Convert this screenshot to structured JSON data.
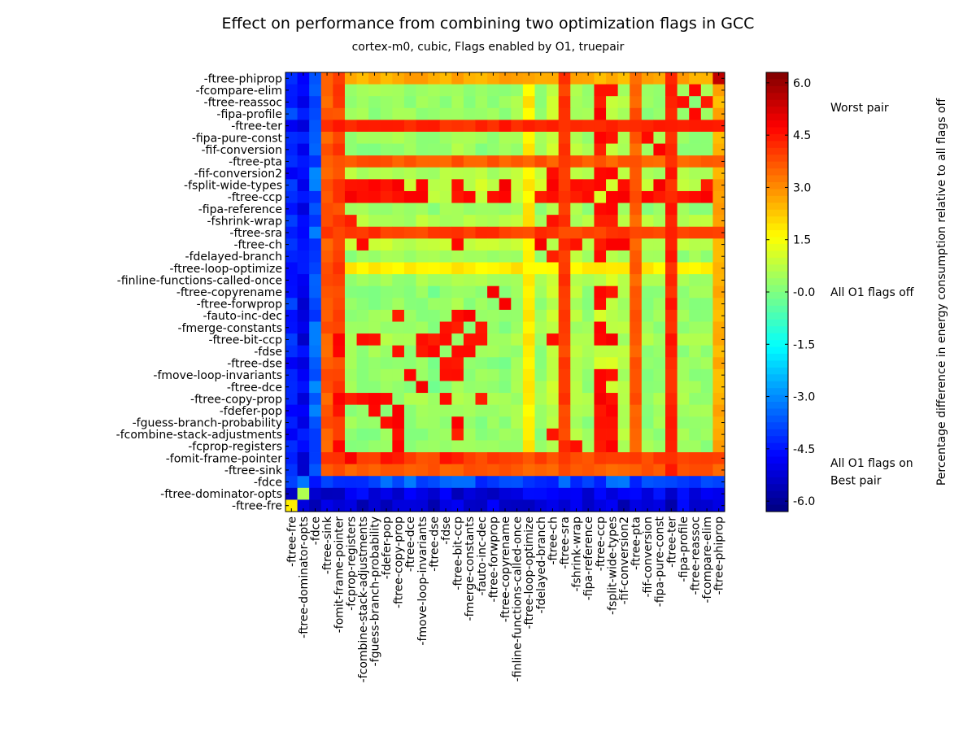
{
  "chart_data": {
    "type": "heatmap",
    "title": "Effect on performance from combining two optimization flags in GCC",
    "subtitle": "cortex-m0, cubic, Flags enabled by O1, truepair",
    "colorbar": {
      "label": "Percentage difference in energy consumption relative to all flags off",
      "range": [
        -6.3,
        6.3
      ],
      "colormap": "jet",
      "ticks": [
        6.0,
        4.5,
        3.0,
        1.5,
        -0.0,
        -1.5,
        -3.0,
        -4.5,
        -6.0
      ],
      "tick_labels": [
        "6.0",
        "4.5",
        "3.0",
        "1.5",
        "-0.0",
        "-1.5",
        "-3.0",
        "-4.5",
        "-6.0"
      ],
      "annotations": [
        {
          "value": 5.3,
          "text": "Worst pair"
        },
        {
          "value": 0.0,
          "text": "All O1 flags off"
        },
        {
          "value": -4.9,
          "text": "All O1 flags on"
        },
        {
          "value": -5.4,
          "text": "Best pair"
        }
      ]
    },
    "y_labels_top_to_bottom": [
      "-ftree-phiprop",
      "-fcompare-elim",
      "-ftree-reassoc",
      "-fipa-profile",
      "-ftree-ter",
      "-fipa-pure-const",
      "-fif-conversion",
      "-ftree-pta",
      "-fif-conversion2",
      "-fsplit-wide-types",
      "-ftree-ccp",
      "-fipa-reference",
      "-fshrink-wrap",
      "-ftree-sra",
      "-ftree-ch",
      "-fdelayed-branch",
      "-ftree-loop-optimize",
      "-finline-functions-called-once",
      "-ftree-copyrename",
      "-ftree-forwprop",
      "-fauto-inc-dec",
      "-fmerge-constants",
      "-ftree-bit-ccp",
      "-fdse",
      "-ftree-dse",
      "-fmove-loop-invariants",
      "-ftree-dce",
      "-ftree-copy-prop",
      "-fdefer-pop",
      "-fguess-branch-probability",
      "-fcombine-stack-adjustments",
      "-fcprop-registers",
      "-fomit-frame-pointer",
      "-ftree-sink",
      "-fdce",
      "-ftree-dominator-opts",
      "-ftree-fre"
    ],
    "x_labels_left_to_right": [
      "-ftree-fre",
      "-ftree-dominator-opts",
      "-fdce",
      "-ftree-sink",
      "-fomit-frame-pointer",
      "-fcprop-registers",
      "-fcombine-stack-adjustments",
      "-fguess-branch-probability",
      "-fdefer-pop",
      "-ftree-copy-prop",
      "-ftree-dce",
      "-fmove-loop-invariants",
      "-ftree-dse",
      "-fdse",
      "-ftree-bit-ccp",
      "-fmerge-constants",
      "-fauto-inc-dec",
      "-ftree-forwprop",
      "-ftree-copyrename",
      "-finline-functions-called-once",
      "-ftree-loop-optimize",
      "-fdelayed-branch",
      "-ftree-ch",
      "-ftree-sra",
      "-fshrink-wrap",
      "-fipa-reference",
      "-ftree-ccp",
      "-fsplit-wide-types",
      "-fif-conversion2",
      "-ftree-pta",
      "-fif-conversion",
      "-fipa-pure-const",
      "-ftree-ter",
      "-fipa-profile",
      "-ftree-reassoc",
      "-fcompare-elim",
      "-ftree-phiprop"
    ],
    "flags": [
      {
        "name": "-ftree-fre",
        "value": 1.5,
        "hot": []
      },
      {
        "name": "-ftree-dominator-opts",
        "value": 2.0,
        "hot": []
      },
      {
        "name": "-fdce",
        "value": -4.6,
        "hot": []
      },
      {
        "name": "-ftree-sink",
        "value": 3.6,
        "hot": []
      },
      {
        "name": "-fomit-frame-pointer",
        "value": 3.9,
        "hot": [
          "-ftree-copy-prop",
          "-ftree-bit-ccp",
          "-fdse",
          "-fdefer-pop",
          "-fcprop-registers"
        ]
      },
      {
        "name": "-fcprop-registers",
        "value": 0.3,
        "hot": [
          "-fomit-frame-pointer",
          "-ftree-copy-prop",
          "-fshrink-wrap",
          "-ftree-ccp",
          "-fsplit-wide-types"
        ]
      },
      {
        "name": "-fcombine-stack-adjustments",
        "value": 0.2,
        "hot": [
          "-ftree-copy-prop",
          "-fsplit-wide-types",
          "-ftree-ccp",
          "-ftree-ch",
          "-ftree-bit-ccp"
        ]
      },
      {
        "name": "-fguess-branch-probability",
        "value": 0.2,
        "hot": [
          "-ftree-copy-prop",
          "-fdefer-pop",
          "-ftree-ccp",
          "-fsplit-wide-types",
          "-ftree-bit-ccp"
        ]
      },
      {
        "name": "-fdefer-pop",
        "value": 0.3,
        "hot": [
          "-ftree-copy-prop",
          "-fguess-branch-probability",
          "-fomit-frame-pointer",
          "-ftree-ccp",
          "-fsplit-wide-types"
        ]
      },
      {
        "name": "-ftree-copy-prop",
        "value": 0.4,
        "hot": [
          "-fdefer-pop",
          "-fguess-branch-probability",
          "-fcombine-stack-adjustments",
          "-fcprop-registers",
          "-fomit-frame-pointer",
          "-ftree-ccp",
          "-fsplit-wide-types",
          "-fdse"
        ]
      },
      {
        "name": "-ftree-dce",
        "value": 0.0,
        "hot": [
          "-fmove-loop-invariants",
          "-ftree-ccp"
        ]
      },
      {
        "name": "-fmove-loop-invariants",
        "value": 0.2,
        "hot": [
          "-ftree-dce",
          "-ftree-bit-ccp",
          "-fdse",
          "-ftree-ccp",
          "-fsplit-wide-types"
        ]
      },
      {
        "name": "-ftree-dse",
        "value": 0.0,
        "hot": [
          "-fdse",
          "-ftree-bit-ccp"
        ]
      },
      {
        "name": "-fdse",
        "value": 0.3,
        "hot": [
          "-ftree-dse",
          "-ftree-copy-prop",
          "-fmove-loop-invariants",
          "-ftree-bit-ccp",
          "-fmerge-constants"
        ]
      },
      {
        "name": "-ftree-bit-ccp",
        "value": 0.5,
        "hot": [
          "-fdse",
          "-fmerge-constants",
          "-fauto-inc-dec",
          "-ftree-ccp",
          "-fsplit-wide-types",
          "-ftree-ch"
        ]
      },
      {
        "name": "-fmerge-constants",
        "value": 0.2,
        "hot": [
          "-ftree-bit-ccp",
          "-fdse",
          "-ftree-ccp"
        ]
      },
      {
        "name": "-fauto-inc-dec",
        "value": 0.2,
        "hot": [
          "-ftree-bit-ccp",
          "-fmerge-constants",
          "-ftree-copy-prop"
        ]
      },
      {
        "name": "-ftree-forwprop",
        "value": 0.1,
        "hot": [
          "-ftree-copyrename",
          "-ftree-ccp"
        ]
      },
      {
        "name": "-ftree-copyrename",
        "value": 0.0,
        "hot": [
          "-ftree-forwprop",
          "-ftree-ccp",
          "-fsplit-wide-types"
        ]
      },
      {
        "name": "-finline-functions-called-once",
        "value": 0.4,
        "hot": []
      },
      {
        "name": "-ftree-loop-optimize",
        "value": 1.8,
        "hot": []
      },
      {
        "name": "-fdelayed-branch",
        "value": 0.3,
        "hot": [
          "-ftree-ch",
          "-ftree-ccp"
        ]
      },
      {
        "name": "-ftree-ch",
        "value": 0.8,
        "hot": [
          "-fdelayed-branch",
          "-ftree-ccp",
          "-fsplit-wide-types",
          "-fshrink-wrap",
          "-ftree-bit-ccp",
          "-fif-conversion2"
        ]
      },
      {
        "name": "-ftree-sra",
        "value": 4.0,
        "hot": []
      },
      {
        "name": "-fshrink-wrap",
        "value": 0.6,
        "hot": [
          "-ftree-ccp",
          "-fsplit-wide-types",
          "-ftree-ch",
          "-fcprop-registers"
        ]
      },
      {
        "name": "-fipa-reference",
        "value": 0.3,
        "hot": [
          "-ftree-ccp",
          "-fsplit-wide-types"
        ]
      },
      {
        "name": "-ftree-ccp",
        "value": 0.9,
        "hot": [
          "-fsplit-wide-types",
          "-ftree-ch",
          "-fshrink-wrap",
          "-fipa-reference",
          "-ftree-bit-ccp"
        ]
      },
      {
        "name": "-fsplit-wide-types",
        "value": 0.9,
        "hot": [
          "-ftree-ccp",
          "-fshrink-wrap",
          "-ftree-ch",
          "-fif-conversion2"
        ]
      },
      {
        "name": "-fif-conversion2",
        "value": 0.6,
        "hot": [
          "-fsplit-wide-types",
          "-ftree-ch",
          "-ftree-ccp"
        ]
      },
      {
        "name": "-ftree-pta",
        "value": 3.6,
        "hot": []
      },
      {
        "name": "-fif-conversion",
        "value": 0.2,
        "hot": [
          "-fipa-pure-const",
          "-ftree-ccp"
        ]
      },
      {
        "name": "-fipa-pure-const",
        "value": 0.3,
        "hot": [
          "-fif-conversion",
          "-ftree-ccp",
          "-fsplit-wide-types"
        ]
      },
      {
        "name": "-ftree-ter",
        "value": 4.3,
        "hot": []
      },
      {
        "name": "-fipa-profile",
        "value": 0.3,
        "hot": [
          "-ftree-reassoc",
          "-ftree-ccp"
        ]
      },
      {
        "name": "-ftree-reassoc",
        "value": 0.3,
        "hot": [
          "-fipa-profile",
          "-fcompare-elim",
          "-ftree-ccp"
        ]
      },
      {
        "name": "-fcompare-elim",
        "value": 0.3,
        "hot": [
          "-ftree-reassoc",
          "-ftree-ccp",
          "-fsplit-wide-types"
        ]
      },
      {
        "name": "-ftree-phiprop",
        "value": 2.6,
        "hot": []
      }
    ],
    "special_rows": [
      {
        "name": "-ftree-fre",
        "typical": -5.2,
        "note": "dark blue row"
      },
      {
        "name": "-ftree-dominator-opts",
        "typical": -5.0,
        "note": "dark blue row"
      },
      {
        "name": "-fdce",
        "typical": -3.8,
        "note": "blue row"
      }
    ],
    "special_cols": [
      {
        "name": "-ftree-fre",
        "typical": -4.3
      },
      {
        "name": "-ftree-dominator-opts",
        "typical": -4.8
      },
      {
        "name": "-fdce",
        "typical": -3.6
      }
    ],
    "diagonal_samples": [
      {
        "name": "-ftree-fre",
        "value": 1.8
      },
      {
        "name": "-ftree-dominator-opts",
        "value": 0.6
      },
      {
        "name": "-fdce",
        "value": -4.5
      },
      {
        "name": "-ftree-sink",
        "value": 3.6
      },
      {
        "name": "-ftree-phiprop",
        "value": 5.5
      }
    ]
  }
}
